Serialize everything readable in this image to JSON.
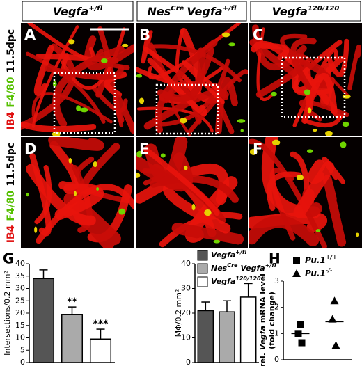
{
  "figure": {
    "headers": [
      [
        [
          "Vegfa",
          "+/fl"
        ]
      ],
      [
        [
          "Nes",
          "Cre"
        ],
        [
          "Vegfa",
          "+/fl"
        ]
      ],
      [
        [
          "Vegfa",
          "120/120"
        ]
      ]
    ],
    "row_labels": [
      [
        "IB4",
        "F4/80",
        "11.5dpc"
      ],
      [
        "IB4",
        "F4/80",
        "11.5dpc"
      ]
    ],
    "panel_letters": [
      "A",
      "B",
      "C",
      "D",
      "E",
      "F",
      "G",
      "H"
    ]
  },
  "chart_data": [
    {
      "type": "bar",
      "ylabel": "Intersections/0.2 mm²",
      "ylim": [
        0,
        40
      ],
      "yticks": [
        0,
        5,
        10,
        15,
        20,
        25,
        30,
        35,
        40
      ],
      "series": [
        {
          "name": [
            [
              "Vegfa",
              "+/fl"
            ]
          ],
          "color": "#555555",
          "values": [
            34
          ],
          "errors": [
            3.5
          ]
        },
        {
          "name": [
            [
              "Nes",
              "Cre"
            ],
            [
              "Vegfa",
              "+/fl"
            ]
          ],
          "color": "#aaaaaa",
          "values": [
            19.5
          ],
          "errors": [
            3
          ],
          "annotation": "**"
        },
        {
          "name": [
            [
              "Vegfa",
              "120/120"
            ]
          ],
          "color": "#ffffff",
          "values": [
            9.5
          ],
          "errors": [
            4
          ],
          "annotation": "***"
        }
      ]
    },
    {
      "type": "bar",
      "ylabel": "MΦ/0.2 mm²",
      "ylim": [
        0,
        40
      ],
      "yticks": [
        0,
        10,
        20,
        30,
        40
      ],
      "series": [
        {
          "color": "#555555",
          "values": [
            21
          ],
          "errors": [
            3.5
          ]
        },
        {
          "color": "#aaaaaa",
          "values": [
            20.5
          ],
          "errors": [
            4.5
          ]
        },
        {
          "color": "#ffffff",
          "values": [
            26.5
          ],
          "errors": [
            5.5
          ]
        }
      ]
    },
    {
      "type": "scatter",
      "ylabel": [
        [
          "rel. ",
          "Vegfa",
          " mRNA level"
        ],
        [
          "(fold change)"
        ]
      ],
      "ylim": [
        0,
        3
      ],
      "yticks": [
        0,
        1,
        2,
        3
      ],
      "series": [
        {
          "name": [
            [
              "Pu.1",
              "+/+"
            ]
          ],
          "marker": "square",
          "color": "#000000",
          "values": [
            1.35,
            1.0,
            0.65
          ],
          "mean": 1.0
        },
        {
          "name": [
            [
              "Pu.1",
              "-/-"
            ]
          ],
          "marker": "triangle",
          "color": "#000000",
          "values": [
            2.25,
            1.55,
            0.55
          ],
          "mean": 1.45
        }
      ]
    }
  ]
}
